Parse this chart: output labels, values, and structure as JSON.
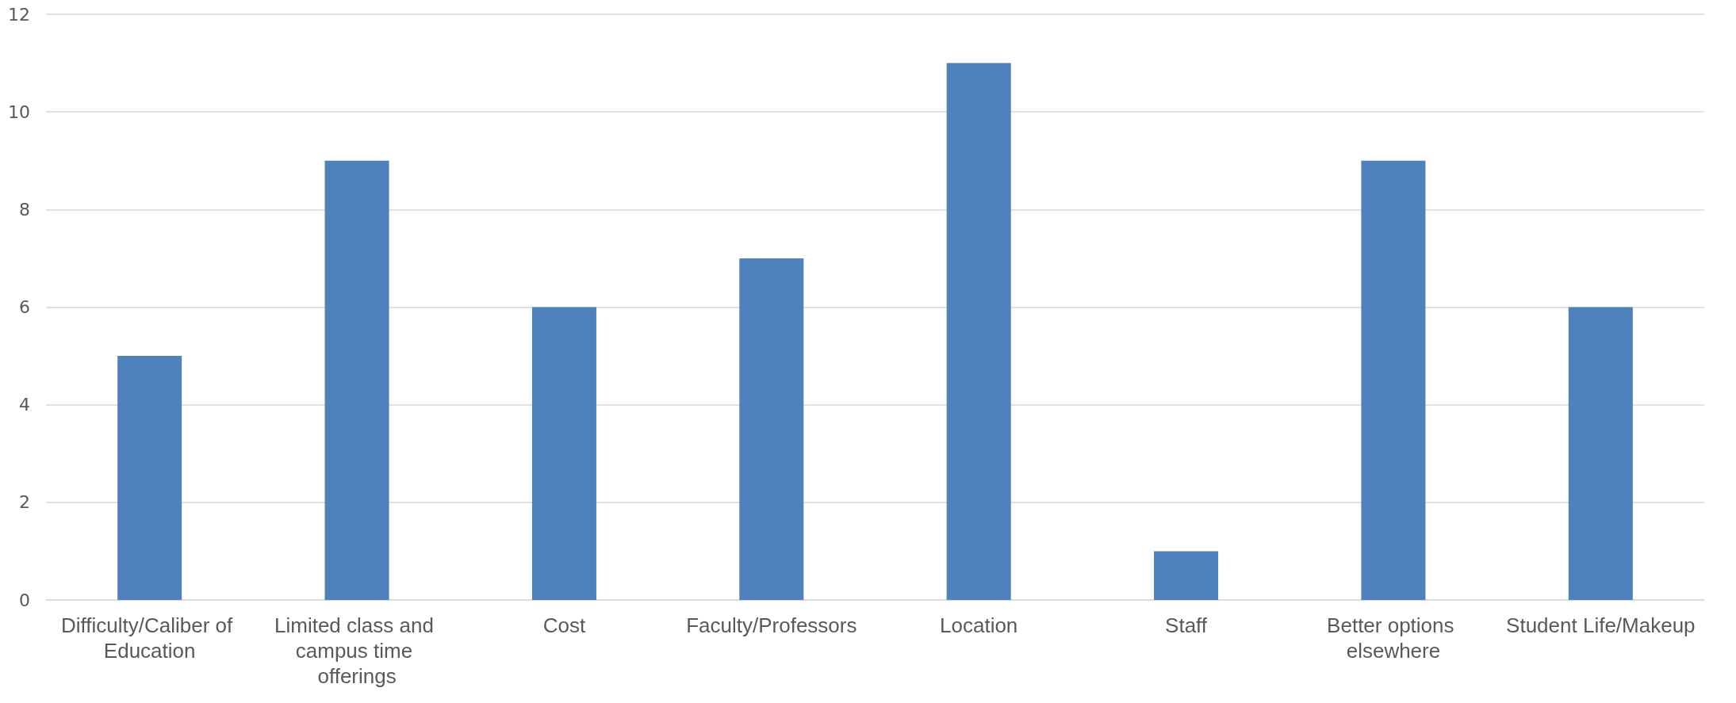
{
  "chart_data": {
    "type": "bar",
    "categories": [
      "Difficulty/Caliber of Education",
      "Limited class and campus time offerings",
      "Cost",
      "Faculty/Professors",
      "Location",
      "Staff",
      "Better options elsewhere",
      "Student Life/Makeup"
    ],
    "values": [
      5,
      9,
      6,
      7,
      11,
      1,
      9,
      6
    ],
    "color": "#4f81bd",
    "ylim": [
      0,
      12
    ],
    "yticks": [
      0,
      2,
      4,
      6,
      8,
      10,
      12
    ],
    "grid": "y"
  }
}
